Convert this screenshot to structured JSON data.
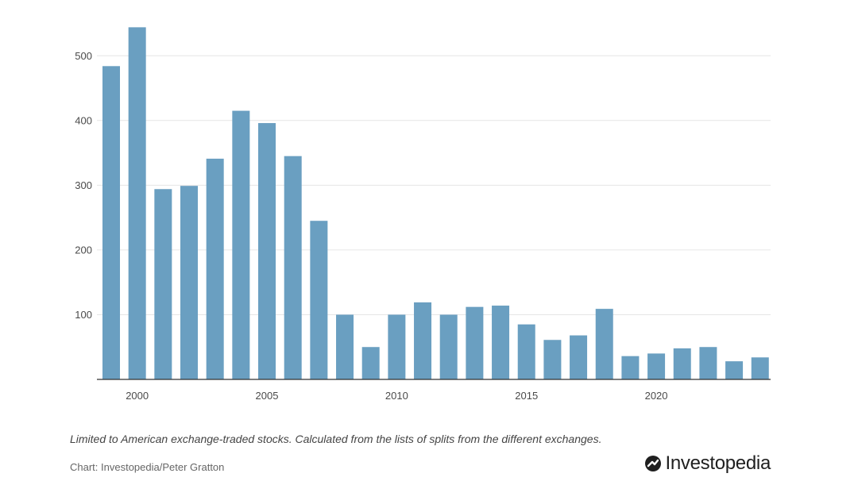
{
  "chart_data": {
    "type": "bar",
    "title": "",
    "xlabel": "",
    "ylabel": "",
    "ylim": [
      0,
      550
    ],
    "yticks": [
      100,
      200,
      300,
      400,
      500
    ],
    "xticks": [
      2000,
      2005,
      2010,
      2015,
      2020
    ],
    "grid": true,
    "bar_color": "#6a9fc1",
    "categories": [
      1999,
      2000,
      2001,
      2002,
      2003,
      2004,
      2005,
      2006,
      2007,
      2008,
      2009,
      2010,
      2011,
      2012,
      2013,
      2014,
      2015,
      2016,
      2017,
      2018,
      2019,
      2020,
      2021,
      2022,
      2023,
      2024
    ],
    "values": [
      484,
      544,
      294,
      299,
      341,
      415,
      396,
      345,
      245,
      100,
      50,
      100,
      119,
      100,
      112,
      114,
      85,
      61,
      68,
      109,
      36,
      40,
      48,
      50,
      28,
      34
    ]
  },
  "footer": {
    "note": "Limited to American exchange-traded stocks. Calculated from the lists of splits from the different exchanges.",
    "source": "Chart: Investopedia/Peter Gratton",
    "brand_name": "Investopedia"
  }
}
